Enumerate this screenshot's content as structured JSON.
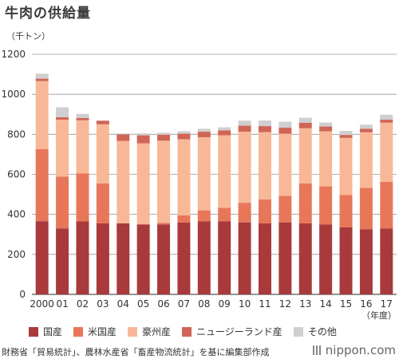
{
  "title": "牛肉の供給量",
  "unit_label": "（千トン）",
  "source": "財務省「貿易統計」、農林水産省「畜産物流統計」を基に編集部作成",
  "logo_text": "nippon.com",
  "chart_data": {
    "type": "bar",
    "stacked": true,
    "categories": [
      "2000",
      "01",
      "02",
      "03",
      "04",
      "05",
      "06",
      "07",
      "08",
      "09",
      "10",
      "11",
      "12",
      "13",
      "14",
      "15",
      "16",
      "17"
    ],
    "x_unit_label": "（年度）",
    "ylim": [
      0,
      1200
    ],
    "yticks": [
      0,
      200,
      400,
      600,
      800,
      1000,
      1200
    ],
    "grid": true,
    "legend_position": "bottom",
    "series": [
      {
        "name": "国産",
        "color": "#a93a3b",
        "values": [
          366,
          330,
          365,
          355,
          355,
          350,
          350,
          360,
          365,
          365,
          360,
          355,
          360,
          355,
          350,
          335,
          325,
          330
        ]
      },
      {
        "name": "米国産",
        "color": "#e8775a",
        "values": [
          360,
          258,
          240,
          200,
          0,
          0,
          8,
          35,
          55,
          68,
          98,
          120,
          133,
          200,
          190,
          162,
          207,
          233
        ]
      },
      {
        "name": "豪州産",
        "color": "#f8b898",
        "values": [
          340,
          285,
          265,
          295,
          412,
          405,
          410,
          380,
          365,
          362,
          355,
          336,
          310,
          275,
          275,
          285,
          278,
          295
        ]
      },
      {
        "name": "ニュージーランド産",
        "color": "#d06557",
        "values": [
          12,
          12,
          12,
          18,
          33,
          40,
          30,
          28,
          28,
          25,
          30,
          30,
          30,
          28,
          24,
          15,
          18,
          15
        ]
      },
      {
        "name": "その他",
        "color": "#cfcfcf",
        "values": [
          25,
          50,
          20,
          0,
          4,
          10,
          10,
          12,
          15,
          15,
          25,
          28,
          30,
          25,
          20,
          20,
          20,
          25
        ]
      }
    ]
  }
}
